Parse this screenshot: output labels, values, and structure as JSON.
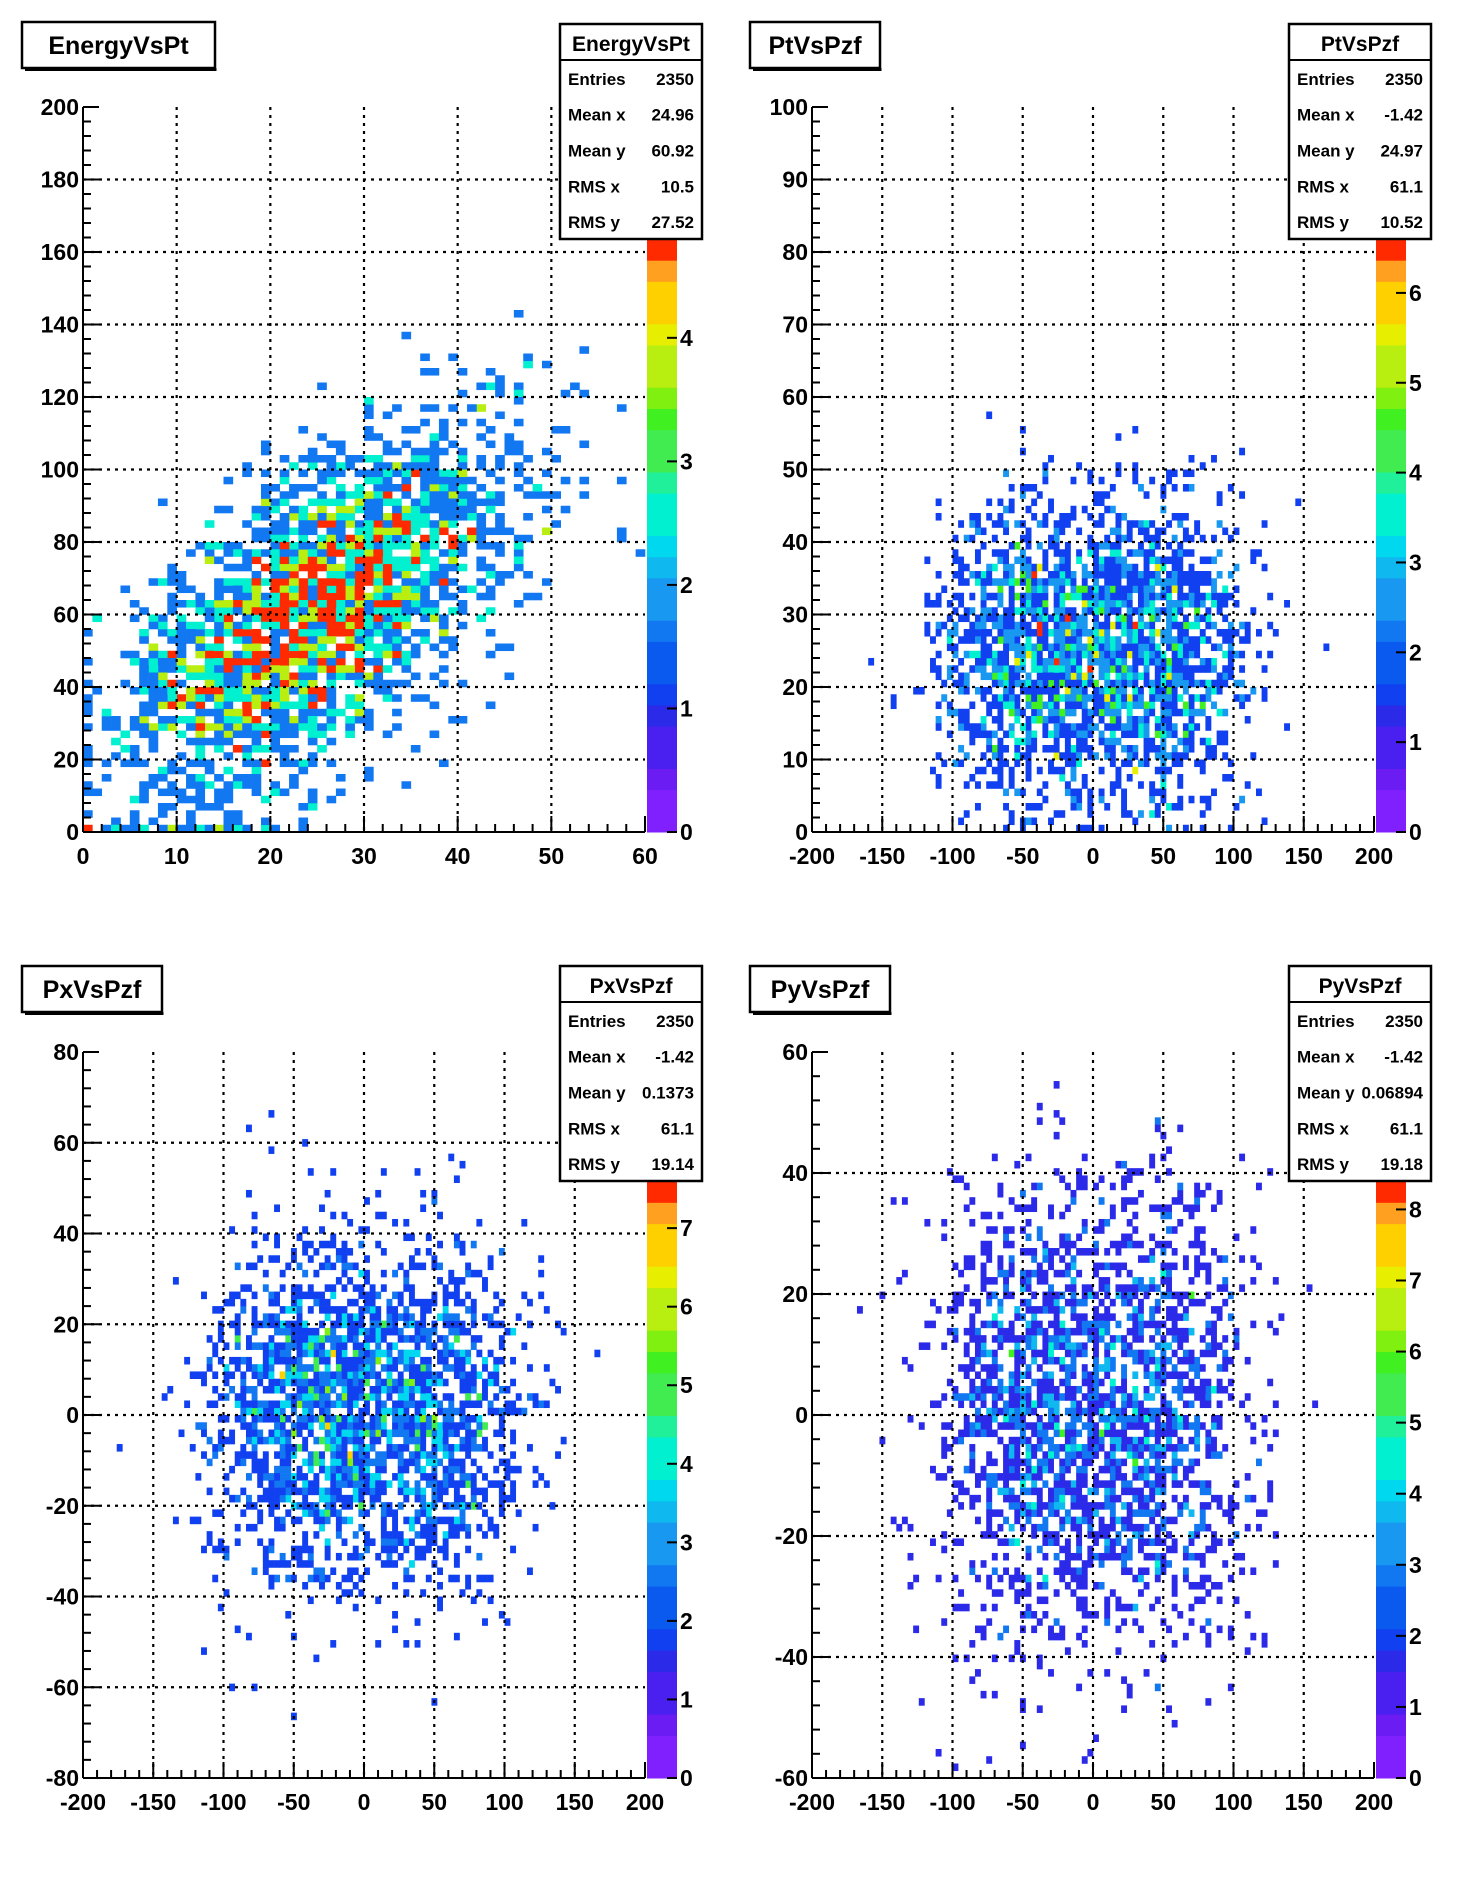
{
  "colors": {
    "palette": [
      "#8020ff",
      "#6a1cf2",
      "#4a20f0",
      "#2a2ae8",
      "#1040f0",
      "#0a5af0",
      "#1278f2",
      "#1898f0",
      "#10b8f0",
      "#00d8ef",
      "#00f0d0",
      "#20f09a",
      "#40ec50",
      "#40f020",
      "#80f010",
      "#b8ee10",
      "#e8ee00",
      "#ffd000",
      "#ffa020",
      "#ff2a00"
    ],
    "frame": "#000000",
    "background": "#ffffff"
  },
  "chart_data": [
    {
      "type": "heatmap",
      "title": "EnergyVsPt",
      "xlim": [
        0,
        60
      ],
      "ylim": [
        0,
        200
      ],
      "x_ticks": [
        "0",
        "10",
        "20",
        "30",
        "40",
        "50",
        "60"
      ],
      "y_ticks": [
        "0",
        "20",
        "40",
        "60",
        "80",
        "100",
        "120",
        "140",
        "160",
        "180",
        "200"
      ],
      "z_max": 4.8,
      "z_ticks": [
        "0",
        "1",
        "2",
        "3",
        "4"
      ],
      "grid": true,
      "stats": {
        "title": "EnergyVsPt",
        "rows": [
          [
            "Entries",
            "2350"
          ],
          [
            "Mean x",
            "24.96"
          ],
          [
            "Mean y",
            "60.92"
          ],
          [
            "RMS x",
            "10.5"
          ],
          [
            "RMS y",
            "27.52"
          ]
        ]
      },
      "distribution": {
        "entries": 2350,
        "mean_x": 24.96,
        "mean_y": 60.92,
        "rms_x": 10.5,
        "rms_y": 27.52,
        "bins_x": 60,
        "bins_y": 100
      }
    },
    {
      "type": "heatmap",
      "title": "PtVsPzf",
      "xlim": [
        -200,
        200
      ],
      "ylim": [
        0,
        100
      ],
      "x_ticks": [
        "-200",
        "-150",
        "-100",
        "-50",
        "0",
        "50",
        "100",
        "150",
        "200"
      ],
      "y_ticks": [
        "0",
        "10",
        "20",
        "30",
        "40",
        "50",
        "60",
        "70",
        "80",
        "90",
        "100"
      ],
      "z_max": 6.6,
      "z_ticks": [
        "0",
        "1",
        "2",
        "3",
        "4",
        "5",
        "6"
      ],
      "grid": true,
      "stats": {
        "title": "PtVsPzf",
        "rows": [
          [
            "Entries",
            "2350"
          ],
          [
            "Mean x",
            "-1.42"
          ],
          [
            "Mean y",
            "24.97"
          ],
          [
            "RMS x",
            "61.1"
          ],
          [
            "RMS y",
            "10.52"
          ]
        ]
      },
      "distribution": {
        "entries": 2350,
        "mean_x": -1.42,
        "mean_y": 24.97,
        "rms_x": 61.1,
        "rms_y": 10.52,
        "bins_x": 100,
        "bins_y": 100
      }
    },
    {
      "type": "heatmap",
      "title": "PxVsPzf",
      "xlim": [
        -200,
        200
      ],
      "ylim": [
        -80,
        80
      ],
      "x_ticks": [
        "-200",
        "-150",
        "-100",
        "-50",
        "0",
        "50",
        "100",
        "150",
        "200"
      ],
      "y_ticks": [
        "-80",
        "-60",
        "-40",
        "-20",
        "0",
        "20",
        "40",
        "60",
        "80"
      ],
      "z_max": 7.6,
      "z_ticks": [
        "0",
        "1",
        "2",
        "3",
        "4",
        "5",
        "6",
        "7"
      ],
      "grid": true,
      "stats": {
        "title": "PxVsPzf",
        "rows": [
          [
            "Entries",
            "2350"
          ],
          [
            "Mean x",
            "-1.42"
          ],
          [
            "Mean y",
            "0.1373"
          ],
          [
            "RMS x",
            "61.1"
          ],
          [
            "RMS y",
            "19.14"
          ]
        ]
      },
      "distribution": {
        "entries": 2350,
        "mean_x": -1.42,
        "mean_y": 0.1373,
        "rms_x": 61.1,
        "rms_y": 19.14,
        "bins_x": 100,
        "bins_y": 100
      }
    },
    {
      "type": "heatmap",
      "title": "PyVsPzf",
      "xlim": [
        -200,
        200
      ],
      "ylim": [
        -60,
        60
      ],
      "x_ticks": [
        "-200",
        "-150",
        "-100",
        "-50",
        "0",
        "50",
        "100",
        "150",
        "200"
      ],
      "y_ticks": [
        "-60",
        "-40",
        "-20",
        "0",
        "20",
        "40",
        "60"
      ],
      "z_max": 8.4,
      "z_ticks": [
        "0",
        "1",
        "2",
        "3",
        "4",
        "5",
        "6",
        "7",
        "8"
      ],
      "grid": true,
      "stats": {
        "title": "PyVsPzf",
        "rows": [
          [
            "Entries",
            "2350"
          ],
          [
            "Mean x",
            "-1.42"
          ],
          [
            "Mean y",
            "0.06894"
          ],
          [
            "RMS x",
            "61.1"
          ],
          [
            "RMS y",
            "19.18"
          ]
        ]
      },
      "distribution": {
        "entries": 2350,
        "mean_x": -1.42,
        "mean_y": 0.06894,
        "rms_x": 61.1,
        "rms_y": 19.18,
        "bins_x": 100,
        "bins_y": 100
      }
    }
  ]
}
